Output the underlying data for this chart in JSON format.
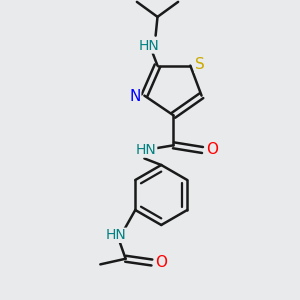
{
  "bg_color": "#e8eaec",
  "bond_color": "#1a1a1a",
  "N_color": "#0000ff",
  "S_color": "#ccaa00",
  "O_color": "#ff0000",
  "NH_color": "#008080",
  "line_width": 1.8,
  "font_size_atom": 11,
  "font_size_small": 10,
  "xlim": [
    0,
    3.0
  ],
  "ylim": [
    0,
    3.2
  ]
}
